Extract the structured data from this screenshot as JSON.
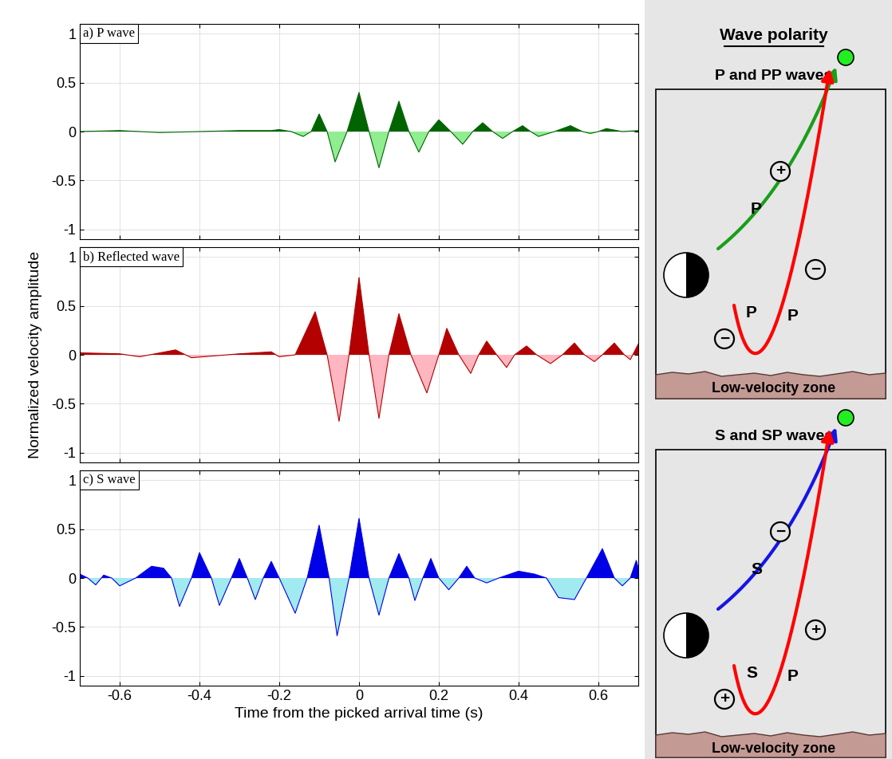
{
  "chart_data": [
    {
      "type": "area",
      "title": "a) P wave",
      "x": [
        -0.7,
        -0.6,
        -0.5,
        -0.4,
        -0.3,
        -0.22,
        -0.2,
        -0.17,
        -0.14,
        -0.12,
        -0.1,
        -0.08,
        -0.06,
        -0.03,
        0,
        0.025,
        0.05,
        0.075,
        0.1,
        0.125,
        0.15,
        0.175,
        0.2,
        0.23,
        0.26,
        0.285,
        0.31,
        0.335,
        0.36,
        0.385,
        0.41,
        0.43,
        0.45,
        0.49,
        0.53,
        0.56,
        0.58,
        0.6,
        0.62,
        0.66,
        0.7
      ],
      "values": [
        0,
        0.01,
        -0.01,
        0,
        0.01,
        0.01,
        0.02,
        0,
        -0.05,
        0,
        0.18,
        0,
        -0.31,
        0,
        0.4,
        0,
        -0.37,
        0,
        0.31,
        0,
        -0.21,
        0,
        0.12,
        0,
        -0.13,
        0,
        0.09,
        0,
        -0.07,
        0,
        0.06,
        0,
        -0.05,
        0,
        0.06,
        0,
        -0.02,
        0,
        0.03,
        0,
        0.01
      ],
      "colors": [
        "#006400",
        "#90ee90"
      ],
      "xlim": [
        -0.7,
        0.7
      ],
      "xticks": [
        -0.6,
        -0.4,
        -0.2,
        0,
        0.2,
        0.4,
        0.6
      ],
      "ylim": [
        -1.1,
        1.1
      ],
      "yticks": [
        -1,
        -0.5,
        0,
        0.5,
        1
      ],
      "grid": true,
      "tick_labels": "y"
    },
    {
      "type": "area",
      "title": "b) Reflected wave",
      "y_label": "Normalized velocity amplitude",
      "x": [
        -0.7,
        -0.6,
        -0.55,
        -0.46,
        -0.42,
        -0.3,
        -0.22,
        -0.2,
        -0.16,
        -0.11,
        -0.08,
        -0.05,
        -0.025,
        0,
        0.025,
        0.05,
        0.075,
        0.1,
        0.13,
        0.17,
        0.2,
        0.22,
        0.25,
        0.28,
        0.3,
        0.32,
        0.345,
        0.37,
        0.39,
        0.42,
        0.445,
        0.48,
        0.51,
        0.54,
        0.565,
        0.59,
        0.61,
        0.64,
        0.665,
        0.68,
        0.7
      ],
      "values": [
        0.02,
        0.01,
        -0.02,
        0.05,
        -0.03,
        0.01,
        0.03,
        -0.02,
        0,
        0.44,
        0,
        -0.68,
        0,
        0.79,
        0,
        -0.65,
        0,
        0.42,
        0,
        -0.39,
        0,
        0.27,
        0,
        -0.19,
        0,
        0.14,
        0,
        -0.13,
        0,
        0.09,
        0,
        -0.09,
        0,
        0.12,
        0,
        -0.07,
        0,
        0.12,
        0,
        -0.05,
        0.11
      ],
      "colors": [
        "#b30000",
        "#ffb6c1"
      ],
      "xlim": [
        -0.7,
        0.7
      ],
      "xticks": [
        -0.6,
        -0.4,
        -0.2,
        0,
        0.2,
        0.4,
        0.6
      ],
      "ylim": [
        -1.1,
        1.1
      ],
      "yticks": [
        -1,
        -0.5,
        0,
        0.5,
        1
      ],
      "grid": true,
      "tick_labels": "y"
    },
    {
      "type": "area",
      "title": "c) S wave",
      "x_label": "Time from the picked arrival time (s)",
      "x": [
        -0.7,
        -0.68,
        -0.66,
        -0.64,
        -0.62,
        -0.6,
        -0.56,
        -0.52,
        -0.49,
        -0.47,
        -0.45,
        -0.42,
        -0.4,
        -0.37,
        -0.35,
        -0.32,
        -0.3,
        -0.28,
        -0.26,
        -0.24,
        -0.22,
        -0.2,
        -0.16,
        -0.13,
        -0.1,
        -0.075,
        -0.055,
        -0.025,
        0,
        0.025,
        0.05,
        0.075,
        0.1,
        0.125,
        0.14,
        0.16,
        0.18,
        0.2,
        0.225,
        0.25,
        0.27,
        0.29,
        0.32,
        0.35,
        0.4,
        0.44,
        0.47,
        0.5,
        0.54,
        0.57,
        0.61,
        0.64,
        0.66,
        0.68,
        0.695,
        0.7
      ],
      "values": [
        0.04,
        0,
        -0.07,
        0.03,
        0,
        -0.08,
        0,
        0.12,
        0.1,
        0,
        -0.29,
        0,
        0.26,
        0,
        -0.28,
        0,
        0.2,
        0,
        -0.22,
        0,
        0.17,
        0,
        -0.36,
        0,
        0.54,
        0,
        -0.59,
        0,
        0.61,
        0,
        -0.38,
        0,
        0.25,
        0,
        -0.23,
        0,
        0.2,
        0,
        -0.12,
        0,
        0.12,
        0,
        -0.05,
        0,
        0.07,
        0.04,
        0,
        -0.2,
        -0.22,
        0,
        0.3,
        0,
        -0.08,
        0,
        0.18,
        0.1
      ],
      "colors": [
        "#0000e6",
        "#a0eaf0"
      ],
      "xlim": [
        -0.7,
        0.7
      ],
      "xticks": [
        -0.6,
        -0.4,
        -0.2,
        0,
        0.2,
        0.4,
        0.6
      ],
      "ylim": [
        -1.1,
        1.1
      ],
      "yticks": [
        -1,
        -0.5,
        0,
        0.5,
        1
      ],
      "grid": true
    }
  ],
  "diagram": {
    "title": "Wave polarity",
    "panels": [
      {
        "title": "P and PP waves",
        "zone": "Low-velocity zone",
        "direct": {
          "label": "P",
          "polarity": "+",
          "color": "#1a9e1a"
        },
        "reflected": {
          "labels": [
            "P",
            "P"
          ],
          "polarities": [
            "−",
            "−"
          ],
          "color": "#ff0000"
        }
      },
      {
        "title": "S and SP waves",
        "zone": "Low-velocity zone",
        "direct": {
          "label": "S",
          "polarity": "−",
          "color": "#1515e6"
        },
        "reflected": {
          "labels": [
            "S",
            "P"
          ],
          "polarities": [
            "+",
            "+"
          ],
          "color": "#ff0000"
        }
      }
    ]
  }
}
